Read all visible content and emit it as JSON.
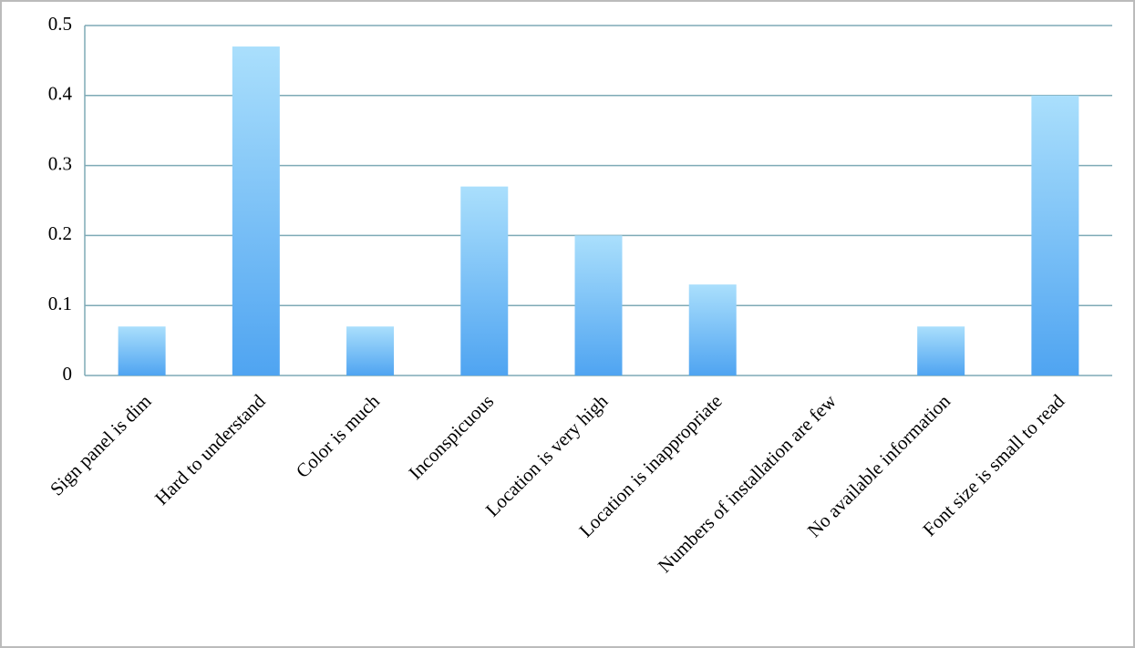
{
  "chart_data": {
    "type": "bar",
    "categories": [
      "Sign panel is dim",
      "Hard to understand",
      "Color is much",
      "Inconspicuous",
      "Location is very high",
      "Location is inappropriate",
      "Numbers of installation are few",
      "No available information",
      "Font size is small to read"
    ],
    "values": [
      0.07,
      0.47,
      0.07,
      0.27,
      0.2,
      0.13,
      0,
      0.07,
      0.4
    ],
    "color": "#4fa4f1",
    "ylim": [
      0,
      0.5
    ],
    "yticks": [
      0,
      0.1,
      0.2,
      0.3,
      0.4,
      0.5
    ],
    "grid": true
  }
}
